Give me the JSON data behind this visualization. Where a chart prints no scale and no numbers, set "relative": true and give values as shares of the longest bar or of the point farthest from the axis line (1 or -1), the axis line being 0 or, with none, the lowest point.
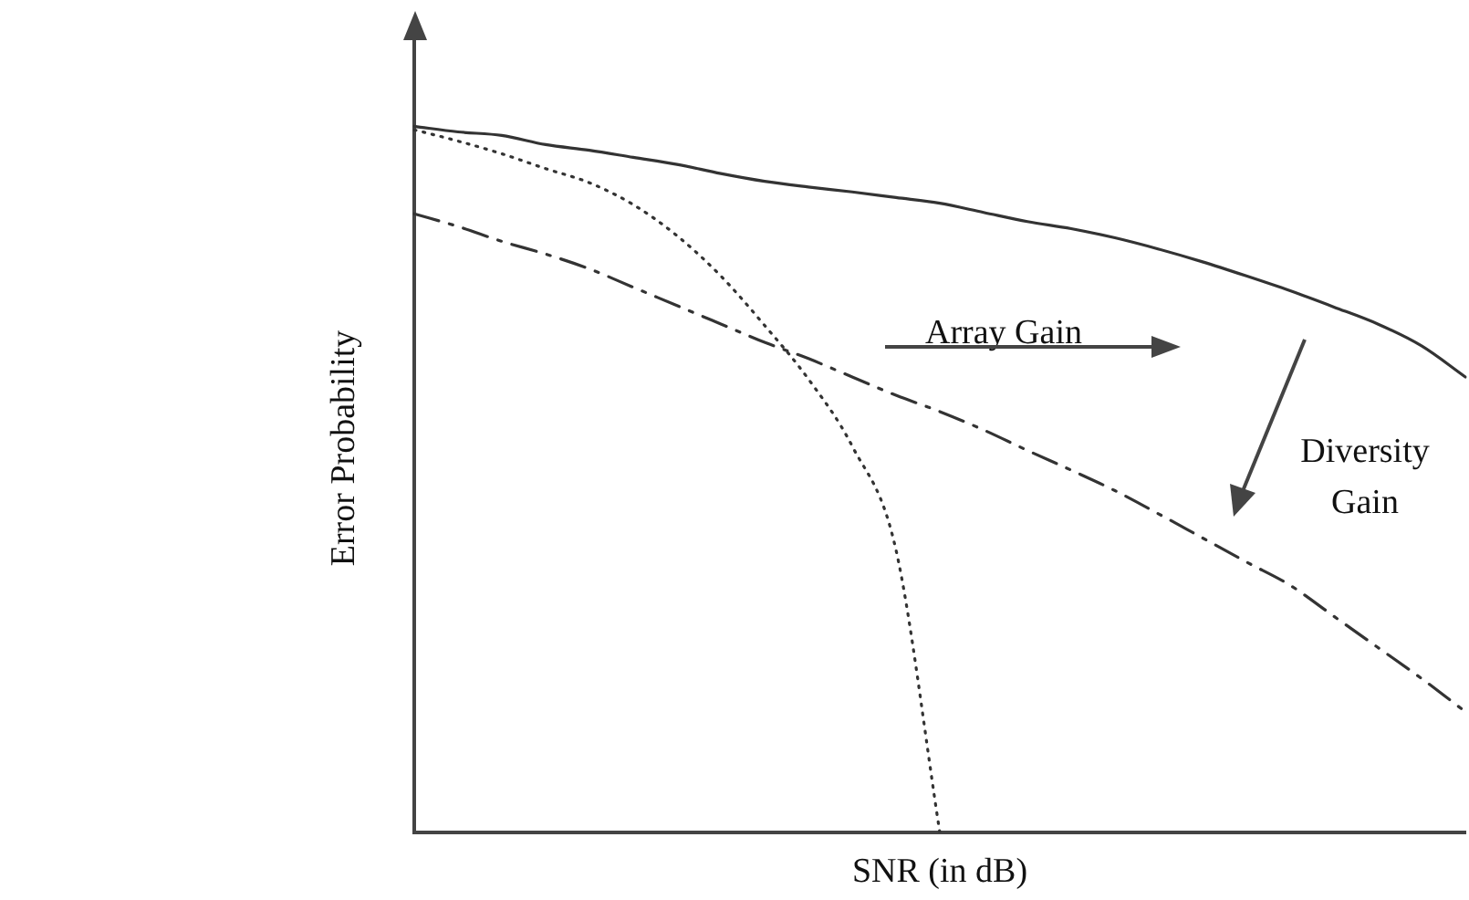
{
  "chart_data": {
    "type": "line",
    "relative": true,
    "xlabel": "SNR (in dB)",
    "ylabel": "Error Probability",
    "categories": [
      null,
      null,
      null,
      null,
      null,
      null,
      null,
      null,
      null,
      null,
      null,
      null,
      null,
      null,
      null,
      null,
      null,
      null,
      null,
      null,
      null,
      null,
      null,
      null,
      null
    ],
    "series": [
      {
        "color": "#333333",
        "line_style": "solid",
        "values": [
          1,
          0.992,
          0.987,
          0.974,
          0.966,
          0.956,
          0.946,
          0.933,
          0.922,
          0.914,
          0.907,
          0.899,
          0.891,
          0.878,
          0.865,
          0.855,
          0.842,
          0.826,
          0.808,
          0.788,
          0.767,
          0.744,
          0.72,
          0.689,
          0.645
        ]
      },
      {
        "color": "#333333",
        "line_style": "dotted",
        "values": [
          0.995,
          0.979,
          0.961,
          0.94,
          0.92,
          0.889,
          0.845,
          0.788,
          0.718,
          0.642,
          0.547,
          0.4,
          0,
          null,
          null,
          null,
          null,
          null,
          null,
          null,
          null,
          null,
          null,
          null,
          null
        ]
      },
      {
        "color": "#333333",
        "line_style": "dashed",
        "values": [
          0.876,
          0.858,
          0.837,
          0.819,
          0.798,
          0.772,
          0.746,
          0.72,
          0.694,
          0.671,
          0.645,
          0.619,
          0.596,
          0.57,
          0.541,
          0.513,
          0.484,
          0.451,
          0.417,
          0.383,
          0.35,
          0.306,
          0.262,
          0.218,
          0.171
        ]
      }
    ],
    "annotations": [
      "Array Gain",
      "Diversity Gain"
    ],
    "grid": false,
    "legend": false,
    "marker": "none"
  }
}
